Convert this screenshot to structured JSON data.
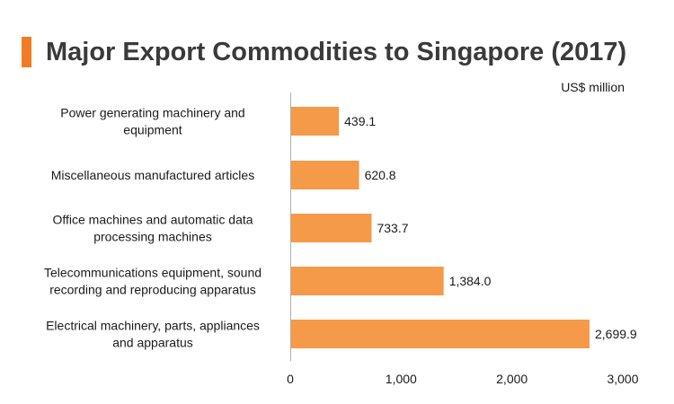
{
  "title": "Major Export Commodities to Singapore (2017)",
  "colors": {
    "accent": "#f07d23",
    "bar": "#f59a48",
    "axis": "#b0b0b0",
    "text": "#1a1a1a"
  },
  "chart_data": {
    "type": "bar",
    "orientation": "horizontal",
    "title": "Major Export Commodities to Singapore (2017)",
    "unit": "US$ million",
    "categories": [
      [
        "Power generating machinery and",
        "equipment"
      ],
      [
        "Miscellaneous manufactured articles"
      ],
      [
        "Office machines and automatic data",
        "processing machines"
      ],
      [
        "Telecommunications equipment, sound",
        "recording and reproducing apparatus"
      ],
      [
        "Electrical machinery, parts, appliances",
        "and apparatus"
      ]
    ],
    "values": [
      439.1,
      620.8,
      733.7,
      1384.0,
      2699.9
    ],
    "value_labels": [
      "439.1",
      "620.8",
      "733.7",
      "1,384.0",
      "2,699.9"
    ],
    "xlim": [
      0,
      3000
    ],
    "ticks": [
      0,
      1000,
      2000,
      3000
    ],
    "tick_labels": [
      "0",
      "1,000",
      "2,000",
      "3,000"
    ],
    "grid": false,
    "legend": "none"
  }
}
